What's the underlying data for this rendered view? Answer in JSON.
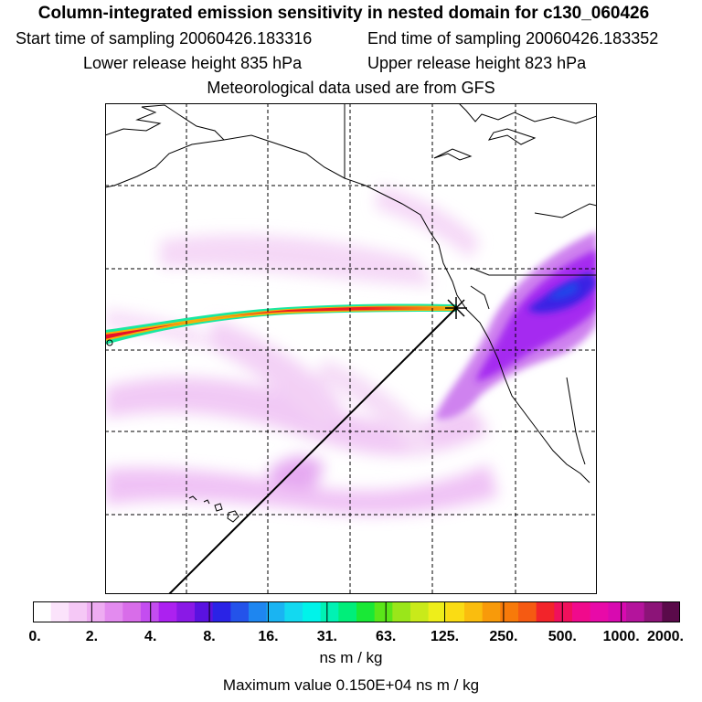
{
  "title": "Column-integrated emission sensitivity in nested domain for c130_060426",
  "start_time": "Start time of sampling 20060426.183316",
  "end_time": "End time of sampling 20060426.183352",
  "lower_release": "Lower release height  835 hPa",
  "upper_release": "Upper release height  823 hPa",
  "met_data": "Meteorological data used are from GFS",
  "colorbar": {
    "labels": [
      "0.",
      "2.",
      "4.",
      "8.",
      "16.",
      "31.",
      "63.",
      "125.",
      "250.",
      "500.",
      "1000.",
      "2000."
    ],
    "colors": [
      "#ffffff",
      "#fbe3fb",
      "#f5c8f6",
      "#eeacf2",
      "#e38bef",
      "#d86de9",
      "#c44df0",
      "#ac21f0",
      "#8a19e6",
      "#5a12e0",
      "#2a23e6",
      "#2453ea",
      "#1e86f0",
      "#1ab4f2",
      "#13d9f0",
      "#00f3ea",
      "#00f2b4",
      "#00ee7a",
      "#19e836",
      "#5ae619",
      "#9ae61a",
      "#c9ea1a",
      "#eeee1a",
      "#fadc14",
      "#fabd0e",
      "#f89a0a",
      "#f77a0a",
      "#f55a12",
      "#f2242a",
      "#f0105c",
      "#f00a8c",
      "#e80aa8",
      "#d80ab0",
      "#b4149c",
      "#8c1478",
      "#5a0a4a"
    ],
    "units": "ns m / kg"
  },
  "max_value": "Maximum value  0.150E+04 ns m / kg",
  "colors": {
    "trajectory_core": "#e8102a",
    "trajectory_edge": "#f5b10a",
    "plume_deep": "#3020e0",
    "plume_mid": "#9b2ff0",
    "plume_light": "#e7a9f5"
  }
}
